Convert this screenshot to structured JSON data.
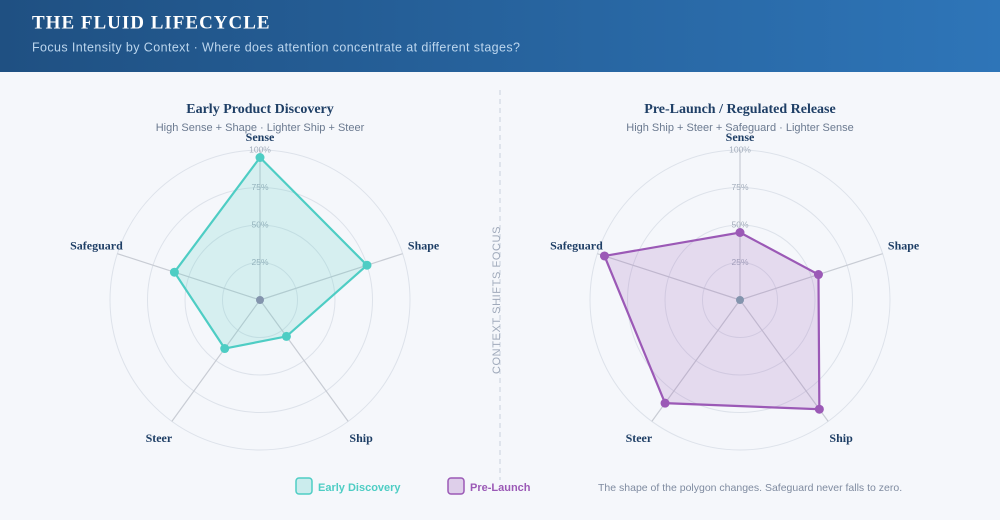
{
  "header": {
    "title": "THE FLUID LIFECYCLE",
    "subtitle": "Focus Intensity by Context · Where does attention concentrate at different stages?"
  },
  "divider_label": "CONTEXT SHIFTS FOCUS",
  "footnote": "The shape of the polygon changes. Safeguard never falls to zero.",
  "chart_data": [
    {
      "type": "radar",
      "title": "Early Product Discovery",
      "subtitle": "High Sense + Shape · Lighter Ship + Steer",
      "categories": [
        "Sense",
        "Shape",
        "Ship",
        "Steer",
        "Safeguard"
      ],
      "series": [
        {
          "name": "Early Discovery",
          "color": "#4ecdc4",
          "values": [
            95,
            75,
            30,
            40,
            60
          ]
        }
      ],
      "rlim": [
        0,
        100
      ],
      "rticks": [
        {
          "value": 25,
          "label": "25%"
        },
        {
          "value": 50,
          "label": "50%"
        },
        {
          "value": 75,
          "label": "75%"
        },
        {
          "value": 100,
          "label": "100%"
        }
      ]
    },
    {
      "type": "radar",
      "title": "Pre-Launch / Regulated Release",
      "subtitle": "High Ship + Steer + Safeguard · Lighter Sense",
      "categories": [
        "Sense",
        "Shape",
        "Ship",
        "Steer",
        "Safeguard"
      ],
      "series": [
        {
          "name": "Pre-Launch",
          "color": "#9b59b6",
          "values": [
            45,
            55,
            90,
            85,
            95
          ]
        }
      ],
      "rlim": [
        0,
        100
      ],
      "rticks": [
        {
          "value": 25,
          "label": "25%"
        },
        {
          "value": 50,
          "label": "50%"
        },
        {
          "value": 75,
          "label": "75%"
        },
        {
          "value": 100,
          "label": "100%"
        }
      ]
    }
  ]
}
